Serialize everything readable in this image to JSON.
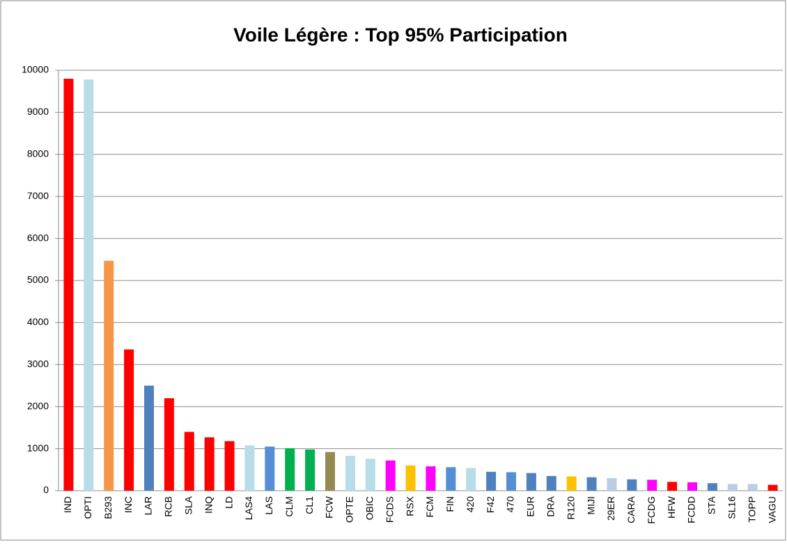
{
  "chart_data": {
    "type": "bar",
    "title": "Voile Légère : Top 95% Participation",
    "categories": [
      "IND",
      "OPTI",
      "B293",
      "INC",
      "LAR",
      "RCB",
      "SLA",
      "INQ",
      "LD",
      "LAS4",
      "LAS",
      "CLM",
      "CL1",
      "FCW",
      "OPTE",
      "OBIC",
      "FCDS",
      "RSX",
      "FCM",
      "FIN",
      "420",
      "F42",
      "470",
      "EUR",
      "DRA",
      "R120",
      "MIJI",
      "29ER",
      "CARA",
      "FCDG",
      "HFW",
      "FCDD",
      "STA",
      "SL16",
      "TOPP",
      "VAGU"
    ],
    "values": [
      9800,
      9780,
      5470,
      3360,
      2500,
      2200,
      1400,
      1270,
      1180,
      1080,
      1050,
      1010,
      980,
      920,
      830,
      760,
      720,
      600,
      580,
      560,
      540,
      450,
      440,
      420,
      350,
      340,
      320,
      300,
      270,
      260,
      210,
      200,
      180,
      160,
      160,
      140
    ],
    "colors": [
      "#ff0000",
      "#b7dde8",
      "#f79646",
      "#ff0000",
      "#4f81bd",
      "#ff0000",
      "#ff0000",
      "#ff0000",
      "#ff0000",
      "#b7dde8",
      "#558ed5",
      "#00b050",
      "#00b050",
      "#948a54",
      "#b7dde8",
      "#b7dde8",
      "#ff00ff",
      "#ffc000",
      "#ff00ff",
      "#558ed5",
      "#b7dde8",
      "#4f81bd",
      "#558ed5",
      "#4f81bd",
      "#4f81bd",
      "#ffc000",
      "#4f81bd",
      "#b9cde5",
      "#4f81bd",
      "#ff00ff",
      "#ff0000",
      "#ff00ff",
      "#4f81bd",
      "#b9cde5",
      "#b9cde5",
      "#ff0000"
    ],
    "ylim": [
      0,
      10000
    ],
    "yticks": [
      0,
      1000,
      2000,
      3000,
      4000,
      5000,
      6000,
      7000,
      8000,
      9000,
      10000
    ],
    "grid": true
  }
}
